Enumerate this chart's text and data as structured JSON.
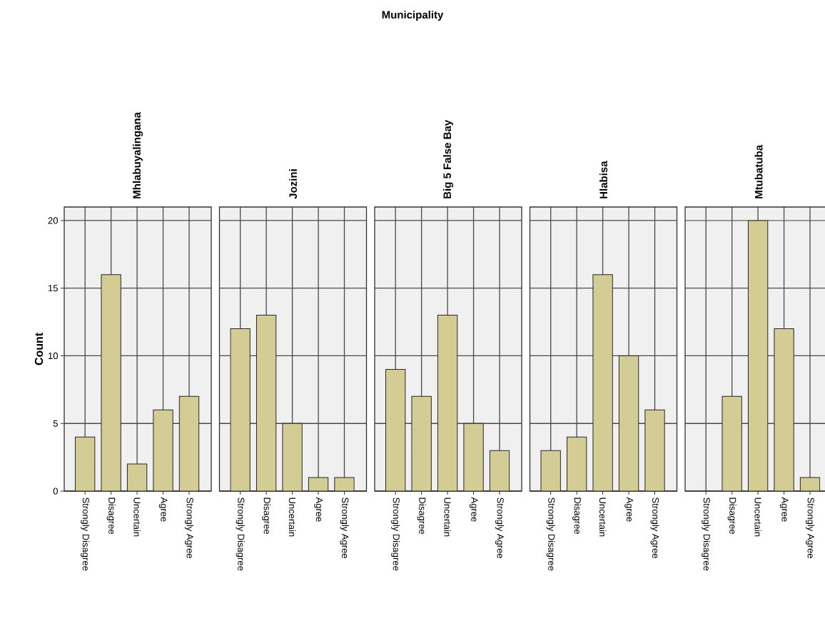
{
  "chart_data": [
    {
      "type": "bar",
      "title": "Mhlabuyalingana",
      "ylabel": "Count",
      "annotations": [
        "Municipality"
      ],
      "categories": [
        "Strongly Disagree",
        "Disagree",
        "Uncertain",
        "Agree",
        "Strongly Agree"
      ],
      "values": [
        4,
        16,
        2,
        6,
        7
      ],
      "color": "#d3cd95",
      "ylim": [
        0,
        21
      ],
      "yticks": [
        0,
        5,
        10,
        15,
        20
      ],
      "grid": true
    },
    {
      "type": "bar",
      "title": "Jozini",
      "categories": [
        "Strongly Disagree",
        "Disagree",
        "Uncertain",
        "Agree",
        "Strongly Agree"
      ],
      "values": [
        12,
        13,
        5,
        1,
        1
      ],
      "color": "#d3cd95",
      "ylim": [
        0,
        21
      ],
      "yticks": [
        0,
        5,
        10,
        15,
        20
      ],
      "grid": true,
      "tick_labels": "x"
    },
    {
      "type": "bar",
      "title": "Big 5 False Bay",
      "categories": [
        "Strongly Disagree",
        "Disagree",
        "Uncertain",
        "Agree",
        "Strongly Agree"
      ],
      "values": [
        9,
        7,
        13,
        5,
        3
      ],
      "color": "#d3cd95",
      "ylim": [
        0,
        21
      ],
      "yticks": [
        0,
        5,
        10,
        15,
        20
      ],
      "grid": true,
      "tick_labels": "x"
    },
    {
      "type": "bar",
      "title": "Hlabisa",
      "categories": [
        "Strongly Disagree",
        "Disagree",
        "Uncertain",
        "Agree",
        "Strongly Agree"
      ],
      "values": [
        3,
        4,
        16,
        10,
        6
      ],
      "color": "#d3cd95",
      "ylim": [
        0,
        21
      ],
      "yticks": [
        0,
        5,
        10,
        15,
        20
      ],
      "grid": true,
      "tick_labels": "x"
    },
    {
      "type": "bar",
      "title": "Mtubatuba",
      "categories": [
        "Strongly Disagree",
        "Disagree",
        "Uncertain",
        "Agree",
        "Strongly Agree"
      ],
      "values": [
        null,
        7,
        20,
        12,
        1
      ],
      "color": "#d3cd95",
      "ylim": [
        0,
        21
      ],
      "yticks": [
        0,
        5,
        10,
        15,
        20
      ],
      "grid": true,
      "tick_labels": "x"
    }
  ]
}
